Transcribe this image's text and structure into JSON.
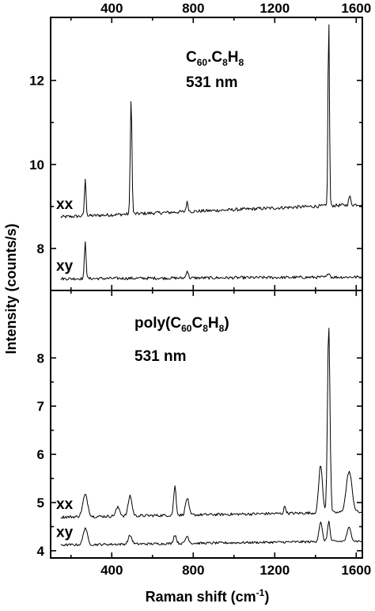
{
  "chart_data": {
    "type": "line",
    "x_range": [
      100,
      1630
    ],
    "x_ticks": [
      400,
      800,
      1200,
      1600
    ],
    "xlabel": "Raman shift (cm",
    "xlabel_sup": "-1",
    "xlabel_close": ")",
    "ylabel": "Intensity (counts/s)",
    "panels": [
      {
        "name": "top",
        "annotation": {
          "line1": [
            "C",
            "60",
            ".C",
            "8",
            "H",
            "8"
          ],
          "line2": "531 nm"
        },
        "ylim": [
          7.0,
          13.5
        ],
        "y_ticks": [
          8,
          10,
          12
        ],
        "series": [
          {
            "name": "xx",
            "baseline": 8.75,
            "end": 9.05,
            "noise": 0.04,
            "peaks": [
              [
                270,
                0.85,
                4
              ],
              [
                495,
                2.8,
                4
              ],
              [
                770,
                0.22,
                5
              ],
              [
                1465,
                4.5,
                3.5
              ],
              [
                1568,
                0.2,
                5
              ]
            ]
          },
          {
            "name": "xy",
            "baseline": 7.28,
            "end": 7.32,
            "noise": 0.035,
            "peaks": [
              [
                270,
                0.9,
                4
              ],
              [
                770,
                0.18,
                5
              ],
              [
                1465,
                0.12,
                5
              ]
            ]
          }
        ]
      },
      {
        "name": "bottom",
        "annotation": {
          "line1": [
            "poly(C",
            "60",
            "C",
            "8",
            "H",
            "8",
            ")"
          ],
          "line2": "531 nm"
        },
        "ylim": [
          3.85,
          9.4
        ],
        "y_ticks": [
          4,
          5,
          6,
          7,
          8
        ],
        "series": [
          {
            "name": "xx",
            "baseline": 4.7,
            "end": 4.8,
            "noise": 0.03,
            "peaks": [
              [
                270,
                0.45,
                12
              ],
              [
                430,
                0.18,
                10
              ],
              [
                490,
                0.42,
                9
              ],
              [
                710,
                0.6,
                6
              ],
              [
                770,
                0.35,
                8
              ],
              [
                1250,
                0.15,
                5
              ],
              [
                1425,
                1.0,
                9
              ],
              [
                1465,
                3.9,
                6
              ],
              [
                1565,
                0.85,
                14
              ]
            ]
          },
          {
            "name": "xy",
            "baseline": 4.12,
            "end": 4.2,
            "noise": 0.025,
            "peaks": [
              [
                270,
                0.35,
                10
              ],
              [
                490,
                0.18,
                9
              ],
              [
                710,
                0.18,
                7
              ],
              [
                770,
                0.15,
                8
              ],
              [
                1425,
                0.4,
                8
              ],
              [
                1465,
                0.42,
                6
              ],
              [
                1565,
                0.28,
                10
              ]
            ]
          }
        ]
      }
    ]
  }
}
